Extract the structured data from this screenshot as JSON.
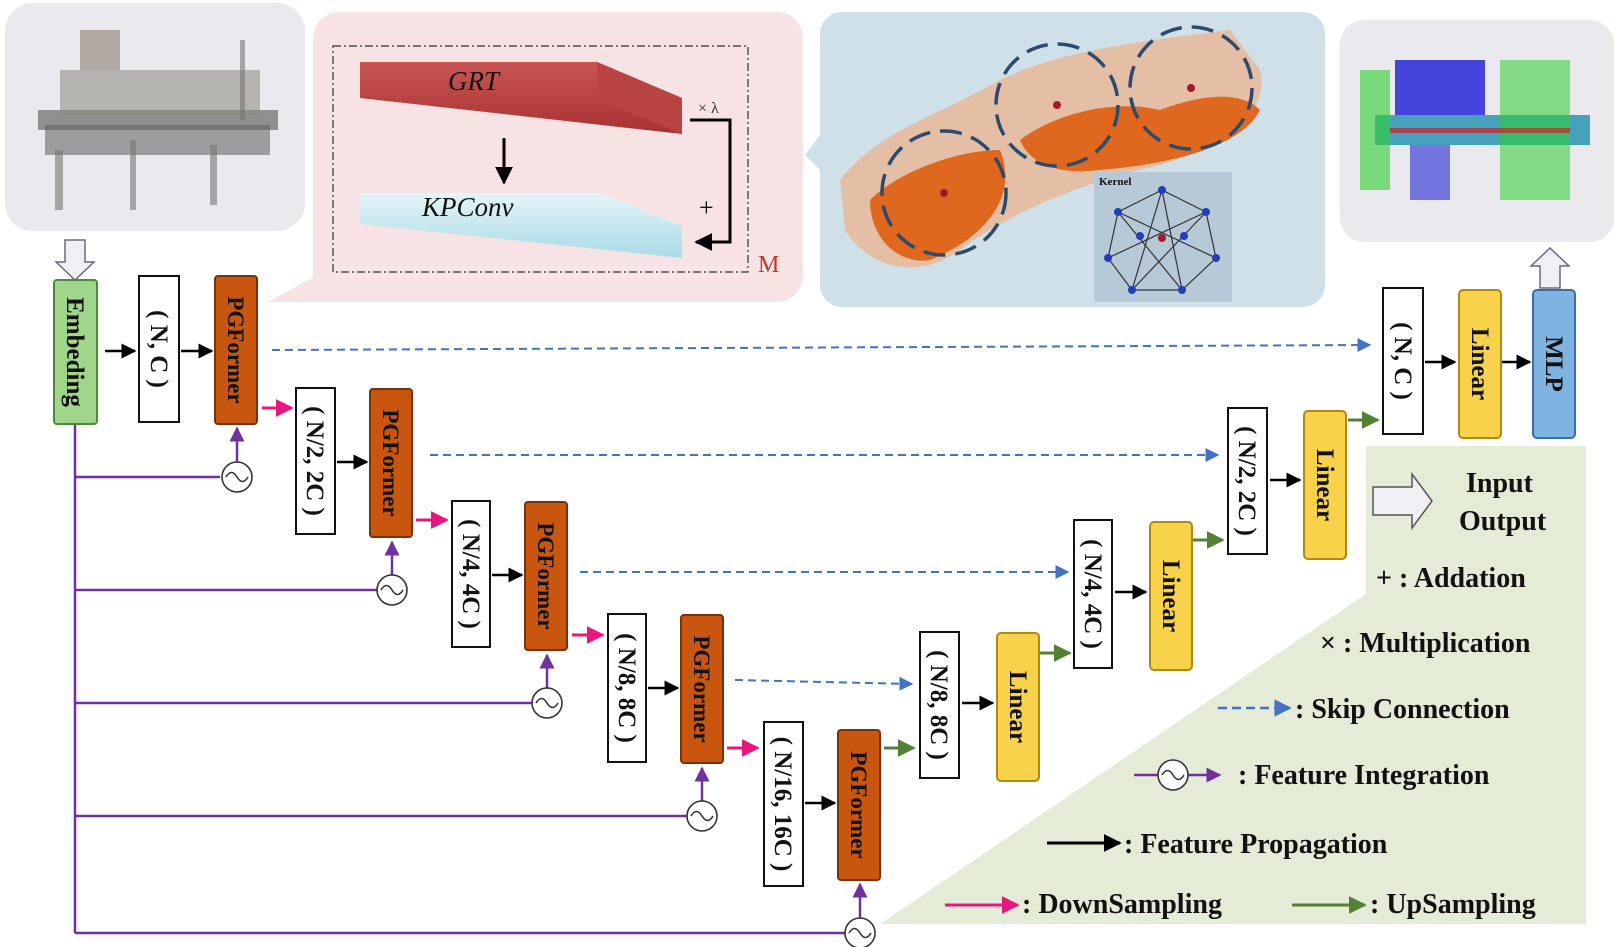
{
  "blocks": {
    "embedding": "Embeding",
    "pgformer": "PGFormer",
    "linear": "Linear",
    "mlp": "MLP"
  },
  "shapes": {
    "s1": "( N, C )",
    "s2": "( N/2, 2C )",
    "s3": "( N/4, 4C )",
    "s4": "( N/8, 8C )",
    "s5": "( N/16, 16C )"
  },
  "detail": {
    "grt": "GRT",
    "kpconv": "KPConv",
    "times_lambda": "× λ",
    "plus": "+",
    "m": "M",
    "kernel": "Kernel"
  },
  "legend": {
    "input": "Input",
    "output": "Output",
    "addition": "+ : Addation",
    "multiplication": "× : Multiplication",
    "skip": ": Skip Connection",
    "feature_integration": ": Feature Integration",
    "feature_propagation": ": Feature Propagation",
    "downsampling": ": DownSampling",
    "upsampling": ": UpSampling"
  },
  "colors": {
    "embedding": "#9fd68a",
    "pgformer": "#c8560f",
    "linear": "#f7d24a",
    "mlp": "#7fb3e0",
    "skip": "#4472c4",
    "integration": "#7030a0",
    "downsampling": "#e8177f",
    "upsampling": "#548235",
    "panel_pink": "#f7e3e3",
    "panel_blue": "#cfe0e8",
    "panel_green": "#e4ecd8"
  }
}
